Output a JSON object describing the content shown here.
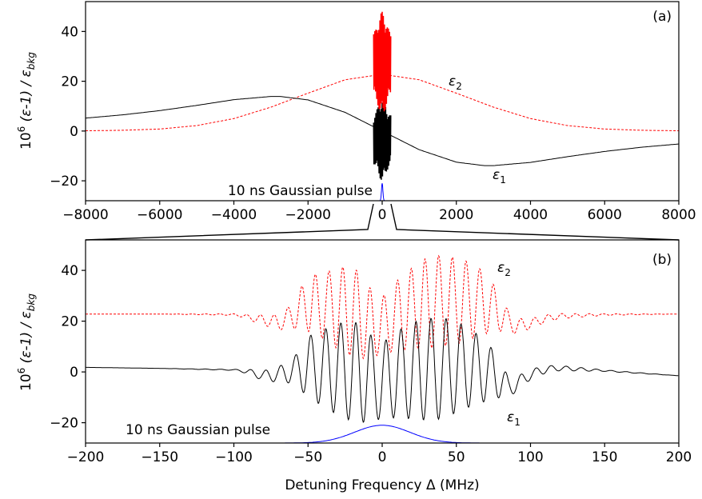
{
  "chart_data": [
    {
      "panel": "(a)",
      "type": "line",
      "xlim": [
        -8000,
        8000
      ],
      "ylim": [
        -28,
        52
      ],
      "xticks": [
        -8000,
        -6000,
        -4000,
        -2000,
        0,
        2000,
        4000,
        6000,
        8000
      ],
      "xtick_labels": [
        "−8000",
        "−6000",
        "−4000",
        "−2000",
        "0",
        "2000",
        "4000",
        "6000",
        "8000"
      ],
      "yticks": [
        -20,
        0,
        20,
        40
      ],
      "ytick_labels": [
        "−20",
        "0",
        "20",
        "40"
      ],
      "ylabel_main": "10",
      "ylabel_sup": "6",
      "ylabel_mid": " (ε-1) / ε",
      "ylabel_sub": "bkg",
      "series": [
        {
          "name": "ε",
          "name_sub": "1",
          "color": "#000000",
          "dash": "solid",
          "x": [
            -8000,
            -7000,
            -6000,
            -5000,
            -4000,
            -3000,
            -2750,
            -2000,
            -1000,
            0,
            1000,
            2000,
            2750,
            3000,
            4000,
            5000,
            6000,
            7000,
            8000
          ],
          "y": [
            5.2,
            6.5,
            8.2,
            10.3,
            12.6,
            13.9,
            13.9,
            12.5,
            7.5,
            0,
            -7.5,
            -12.5,
            -13.9,
            -13.9,
            -12.6,
            -10.3,
            -8.2,
            -6.5,
            -5.2
          ]
        },
        {
          "name": "ε",
          "name_sub": "2",
          "color": "#ff0000",
          "dash": "dashed",
          "x": [
            -8000,
            -7000,
            -6000,
            -5000,
            -4000,
            -3000,
            -2000,
            -1000,
            0,
            1000,
            2000,
            3000,
            4000,
            5000,
            6000,
            7000,
            8000
          ],
          "y": [
            0.1,
            0.3,
            0.8,
            2.2,
            5.0,
            9.6,
            15.2,
            20.6,
            22.8,
            20.6,
            15.2,
            9.6,
            5.0,
            2.2,
            0.8,
            0.3,
            0.1
          ]
        }
      ],
      "gaussian_pulse": {
        "label": "10 ns Gaussian pulse",
        "color": "#0000ff",
        "peak": -21.0,
        "fwhm_mhz": 44
      },
      "bursts": [
        {
          "color": "#000000",
          "ymin": -20,
          "ymax": 13
        },
        {
          "color": "#ff0000",
          "ymin": 6,
          "ymax": 48
        }
      ],
      "curve_labels": [
        {
          "text": "ε",
          "sub": "2",
          "x": 1900,
          "y": 19
        },
        {
          "text": "ε",
          "sub": "1",
          "x": 3100,
          "y": -18
        }
      ],
      "zoom_region": [
        -200,
        200
      ]
    },
    {
      "panel": "(b)",
      "type": "line",
      "xlim": [
        -200,
        200
      ],
      "ylim": [
        -28,
        52
      ],
      "xticks": [
        -200,
        -150,
        -100,
        -50,
        0,
        50,
        100,
        150,
        200
      ],
      "xtick_labels": [
        "−200",
        "−150",
        "−100",
        "−50",
        "0",
        "50",
        "100",
        "150",
        "200"
      ],
      "yticks": [
        -20,
        0,
        20,
        40
      ],
      "ytick_labels": [
        "−20",
        "0",
        "20",
        "40"
      ],
      "xlabel": "Detuning Frequency Δ (MHz)",
      "ylabel_main": "10",
      "ylabel_sup": "6",
      "ylabel_mid": " (ε-1) / ε",
      "ylabel_sub": "bkg",
      "series": [
        {
          "name": "ε",
          "name_sub": "1",
          "color": "#000000",
          "dash": "solid",
          "x": [
            -200,
            -150,
            -100,
            -95,
            -90,
            -80,
            -70,
            -60,
            -55,
            -50,
            -40,
            -30,
            -20,
            -10,
            -5,
            0,
            10,
            20,
            30,
            40,
            50,
            60,
            70,
            80,
            85,
            90,
            100,
            110,
            120,
            150,
            200
          ],
          "baseline": [
            1.8,
            1.4,
            0.8,
            0.5,
            0.0,
            -1.5,
            -1.0,
            0.5,
            1.0,
            2.0,
            1.5,
            1.0,
            0.5,
            -2.0,
            -3.0,
            -3.5,
            -1.0,
            0.5,
            1.0,
            1.5,
            2.0,
            1.5,
            0.5,
            -3.0,
            -6.0,
            -5.0,
            -1.0,
            1.0,
            1.5,
            0.5,
            -1.5
          ],
          "amplitude": [
            0.0,
            0.0,
            0.2,
            0.5,
            1.0,
            2.0,
            3.0,
            5.0,
            8.0,
            12.0,
            15.0,
            18.0,
            20.0,
            18.0,
            16.0,
            15.0,
            17.0,
            19.0,
            20.0,
            20.0,
            18.0,
            15.0,
            12.0,
            7.0,
            4.0,
            3.0,
            2.0,
            1.5,
            1.0,
            0.3,
            0.0
          ]
        },
        {
          "name": "ε",
          "name_sub": "2",
          "color": "#ff0000",
          "dash": "dashed",
          "x": [
            -200,
            -150,
            -100,
            -95,
            -90,
            -80,
            -70,
            -60,
            -55,
            -50,
            -40,
            -30,
            -20,
            -10,
            -5,
            0,
            10,
            20,
            30,
            40,
            50,
            60,
            70,
            80,
            85,
            90,
            100,
            110,
            120,
            150,
            200
          ],
          "baseline": [
            22.8,
            22.8,
            22.6,
            22.2,
            21.5,
            20.5,
            19.5,
            22.0,
            25.0,
            27.0,
            26.0,
            25.0,
            24.0,
            20.0,
            18.0,
            18.5,
            22.0,
            25.0,
            27.0,
            28.0,
            28.0,
            28.0,
            27.0,
            23.0,
            20.0,
            18.0,
            19.0,
            21.0,
            22.0,
            22.6,
            22.8
          ],
          "amplitude": [
            0.0,
            0.0,
            0.3,
            0.6,
            1.0,
            2.0,
            3.0,
            5.0,
            8.0,
            11.0,
            13.0,
            16.0,
            18.0,
            15.0,
            12.0,
            11.0,
            14.0,
            16.0,
            18.0,
            18.0,
            17.0,
            15.0,
            12.0,
            7.0,
            4.0,
            3.0,
            2.0,
            1.5,
            1.0,
            0.3,
            0.0
          ]
        }
      ],
      "gaussian_pulse": {
        "label": "10 ns Gaussian pulse",
        "color": "#0000ff",
        "peak": -21.0,
        "fwhm_mhz": 44
      },
      "curve_labels": [
        {
          "text": "ε",
          "sub": "2",
          "x": 77,
          "y": 40
        },
        {
          "text": "ε",
          "sub": "1",
          "x": 81,
          "y": -19
        }
      ]
    }
  ]
}
